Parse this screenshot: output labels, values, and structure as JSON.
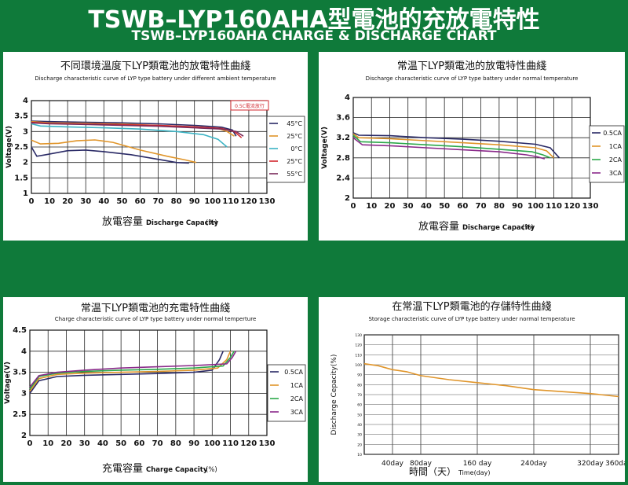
{
  "header": {
    "title_cn": "TSWB–LYP160AHA型電池的充放電特性",
    "title_en": "TSWB–LYP160AHA CHARGE & DISCHARGE CHART"
  },
  "colors": {
    "background": "#0f7a3a",
    "series": {
      "45C": "#2a2a66",
      "25C": "#e0952a",
      "0C": "#3bb3c4",
      "m25C": "#d2272e",
      "m55C": "#7a2a5a",
      "0.5CA": "#2a2a66",
      "1CA": "#e0952a",
      "2CA": "#2ca84a",
      "3CA": "#8a2a8a",
      "storage": "#e0952a"
    }
  },
  "chart_data": [
    {
      "type": "line",
      "title": "不同環境溫度下LYP類電池的放電特性曲綫",
      "subtitle": "Discharge characteristic curve of LYP type battery under different ambient temperature",
      "xlabel_cn": "放電容量",
      "xlabel_en": "Discharge Capacity",
      "xlabel_unit": "(%)",
      "ylabel": "Voltage(V)",
      "xlim": [
        0,
        130
      ],
      "ylim": [
        1,
        4
      ],
      "xticks": [
        "0",
        "10",
        "20",
        "30",
        "40",
        "50",
        "60",
        "70",
        "80",
        "90",
        "100",
        "110",
        "120",
        "130"
      ],
      "yticks": [
        "1",
        "1.5",
        "2",
        "2.5",
        "3",
        "3.5",
        "4"
      ],
      "annotation": "0.5C電流放行",
      "legend_position": "right",
      "series": [
        {
          "name": "45°C",
          "color": "#2a2a66",
          "points": [
            [
              0,
              3.34
            ],
            [
              10,
              3.32
            ],
            [
              30,
              3.3
            ],
            [
              50,
              3.28
            ],
            [
              70,
              3.25
            ],
            [
              90,
              3.2
            ],
            [
              105,
              3.14
            ],
            [
              111,
              3.05
            ],
            [
              113,
              2.85
            ]
          ]
        },
        {
          "name": "25°C",
          "color": "#e0952a",
          "points": [
            [
              0,
              3.32
            ],
            [
              10,
              3.28
            ],
            [
              30,
              3.26
            ],
            [
              50,
              3.24
            ],
            [
              70,
              3.2
            ],
            [
              90,
              3.15
            ],
            [
              103,
              3.1
            ],
            [
              108,
              3.0
            ],
            [
              112,
              2.85
            ]
          ]
        },
        {
          "name": "0°C",
          "color": "#3bb3c4",
          "points": [
            [
              0,
              3.25
            ],
            [
              5,
              3.18
            ],
            [
              20,
              3.15
            ],
            [
              40,
              3.12
            ],
            [
              60,
              3.08
            ],
            [
              80,
              3.0
            ],
            [
              95,
              2.9
            ],
            [
              103,
              2.75
            ],
            [
              108,
              2.5
            ]
          ]
        },
        {
          "name": "25°C",
          "color": "#d2272e",
          "points": [
            [
              0,
              3.3
            ],
            [
              10,
              3.26
            ],
            [
              30,
              3.24
            ],
            [
              50,
              3.22
            ],
            [
              70,
              3.2
            ],
            [
              90,
              3.15
            ],
            [
              105,
              3.1
            ],
            [
              112,
              3.0
            ],
            [
              116,
              2.8
            ]
          ]
        },
        {
          "name": "55°C",
          "color": "#7a2a5a",
          "points": [
            [
              0,
              3.28
            ],
            [
              10,
              3.25
            ],
            [
              30,
              3.23
            ],
            [
              50,
              3.2
            ],
            [
              70,
              3.17
            ],
            [
              90,
              3.12
            ],
            [
              105,
              3.08
            ],
            [
              113,
              3.0
            ],
            [
              117,
              2.85
            ]
          ]
        },
        {
          "name": "",
          "color": "#e0952a",
          "points": [
            [
              0,
              2.72
            ],
            [
              5,
              2.6
            ],
            [
              15,
              2.62
            ],
            [
              25,
              2.7
            ],
            [
              35,
              2.73
            ],
            [
              45,
              2.65
            ],
            [
              60,
              2.4
            ],
            [
              75,
              2.2
            ],
            [
              85,
              2.08
            ],
            [
              91,
              2.0
            ]
          ]
        },
        {
          "name": "",
          "color": "#2a2a66",
          "points": [
            [
              0,
              2.5
            ],
            [
              3,
              2.2
            ],
            [
              8,
              2.25
            ],
            [
              20,
              2.38
            ],
            [
              30,
              2.4
            ],
            [
              40,
              2.35
            ],
            [
              55,
              2.25
            ],
            [
              70,
              2.1
            ],
            [
              80,
              2.0
            ],
            [
              87,
              1.98
            ]
          ]
        }
      ],
      "legend": [
        "45°C",
        "25°C",
        "0°C",
        "25°C",
        "55°C"
      ]
    },
    {
      "type": "line",
      "title": "常温下LYP類電池的放電特性曲綫",
      "subtitle": "Discharge characteristic curve of LYP type battery under normal temperature",
      "xlabel_cn": "放電容量",
      "xlabel_en": "Discharge Capacity",
      "xlabel_unit": "(%)",
      "ylabel": "Voltage(V)",
      "xlim": [
        0,
        130
      ],
      "ylim": [
        2,
        4
      ],
      "xticks": [
        "0",
        "10",
        "20",
        "30",
        "40",
        "50",
        "60",
        "70",
        "80",
        "90",
        "100",
        "110",
        "120",
        "130"
      ],
      "yticks": [
        "2",
        "2.4",
        "2.8",
        "3.2",
        "3.6",
        "4"
      ],
      "legend_position": "right",
      "series": [
        {
          "name": "0.5CA",
          "color": "#2a2a66",
          "points": [
            [
              0,
              3.3
            ],
            [
              3,
              3.25
            ],
            [
              20,
              3.24
            ],
            [
              40,
              3.2
            ],
            [
              60,
              3.17
            ],
            [
              80,
              3.13
            ],
            [
              100,
              3.07
            ],
            [
              108,
              3.0
            ],
            [
              113,
              2.8
            ]
          ]
        },
        {
          "name": "1CA",
          "color": "#e0952a",
          "points": [
            [
              0,
              3.28
            ],
            [
              3,
              3.2
            ],
            [
              20,
              3.18
            ],
            [
              40,
              3.14
            ],
            [
              60,
              3.1
            ],
            [
              80,
              3.06
            ],
            [
              100,
              3.0
            ],
            [
              106,
              2.94
            ],
            [
              110,
              2.8
            ]
          ]
        },
        {
          "name": "2CA",
          "color": "#2ca84a",
          "points": [
            [
              0,
              3.25
            ],
            [
              4,
              3.12
            ],
            [
              20,
              3.1
            ],
            [
              40,
              3.06
            ],
            [
              60,
              3.02
            ],
            [
              80,
              2.97
            ],
            [
              98,
              2.92
            ],
            [
              104,
              2.86
            ],
            [
              108,
              2.8
            ]
          ]
        },
        {
          "name": "3CA",
          "color": "#8a2a8a",
          "points": [
            [
              0,
              3.2
            ],
            [
              5,
              3.06
            ],
            [
              20,
              3.04
            ],
            [
              40,
              3.0
            ],
            [
              60,
              2.96
            ],
            [
              80,
              2.92
            ],
            [
              95,
              2.86
            ],
            [
              101,
              2.82
            ],
            [
              105,
              2.78
            ]
          ]
        }
      ],
      "legend": [
        "0.5CA",
        "1CA",
        "2CA",
        "3CA"
      ]
    },
    {
      "type": "line",
      "title": "常温下LYP類電池的充電特性曲綫",
      "subtitle": "Charge characteristic curve of LYP type battery under normal temperture",
      "xlabel_cn": "充電容量",
      "xlabel_en": "Charge Capacity",
      "xlabel_unit": "(%)",
      "ylabel": "Voltage(V)",
      "xlim": [
        0,
        130
      ],
      "ylim": [
        2,
        4.5
      ],
      "xticks": [
        "0",
        "10",
        "20",
        "30",
        "40",
        "50",
        "60",
        "70",
        "80",
        "90",
        "100",
        "110",
        "120",
        "130"
      ],
      "yticks": [
        "2",
        "2.5",
        "3",
        "3.5",
        "4",
        "4.5"
      ],
      "legend_position": "right",
      "series": [
        {
          "name": "0.5CA",
          "color": "#2a2a66",
          "points": [
            [
              0,
              3.0
            ],
            [
              5,
              3.3
            ],
            [
              15,
              3.4
            ],
            [
              30,
              3.43
            ],
            [
              50,
              3.45
            ],
            [
              70,
              3.47
            ],
            [
              90,
              3.5
            ],
            [
              100,
              3.55
            ],
            [
              104,
              3.8
            ],
            [
              106,
              4.0
            ]
          ]
        },
        {
          "name": "1CA",
          "color": "#e0952a",
          "points": [
            [
              0,
              3.05
            ],
            [
              5,
              3.35
            ],
            [
              15,
              3.45
            ],
            [
              30,
              3.48
            ],
            [
              50,
              3.5
            ],
            [
              70,
              3.52
            ],
            [
              90,
              3.55
            ],
            [
              103,
              3.6
            ],
            [
              108,
              3.8
            ],
            [
              110,
              4.0
            ]
          ]
        },
        {
          "name": "2CA",
          "color": "#2ca84a",
          "points": [
            [
              0,
              3.1
            ],
            [
              5,
              3.4
            ],
            [
              15,
              3.48
            ],
            [
              30,
              3.52
            ],
            [
              50,
              3.55
            ],
            [
              70,
              3.57
            ],
            [
              90,
              3.6
            ],
            [
              106,
              3.65
            ],
            [
              110,
              3.85
            ],
            [
              112,
              4.0
            ]
          ]
        },
        {
          "name": "3CA",
          "color": "#8a2a8a",
          "points": [
            [
              0,
              3.15
            ],
            [
              5,
              3.42
            ],
            [
              15,
              3.5
            ],
            [
              30,
              3.55
            ],
            [
              50,
              3.6
            ],
            [
              70,
              3.63
            ],
            [
              90,
              3.66
            ],
            [
              108,
              3.7
            ],
            [
              111,
              3.85
            ],
            [
              113,
              4.0
            ]
          ]
        }
      ],
      "legend": [
        "0.5CA",
        "1CA",
        "2CA",
        "3CA"
      ]
    },
    {
      "type": "line",
      "title": "在常温下LYP類電池的存儲特性曲綫",
      "subtitle": "Storage characteristic curve of LYP type battery under normal temperature",
      "xlabel_cn": "時間（天）",
      "xlabel_en": "Time(day)",
      "ylabel": "Discharge Cepacity(%)",
      "xlim": [
        0,
        360
      ],
      "ylim": [
        10,
        130
      ],
      "xticks": [
        "40day",
        "80day",
        "160 day",
        "240day",
        "320day",
        "360day"
      ],
      "xtick_values": [
        40,
        80,
        160,
        240,
        320,
        360
      ],
      "yticks": [
        "10",
        "20",
        "30",
        "40",
        "50",
        "60",
        "70",
        "80",
        "90",
        "100",
        "110",
        "120",
        "130"
      ],
      "series": [
        {
          "name": "",
          "color": "#e0952a",
          "points": [
            [
              0,
              101
            ],
            [
              20,
              99
            ],
            [
              40,
              95
            ],
            [
              60,
              93
            ],
            [
              80,
              89
            ],
            [
              120,
              85
            ],
            [
              160,
              82
            ],
            [
              200,
              79
            ],
            [
              240,
              75
            ],
            [
              280,
              73
            ],
            [
              320,
              71
            ],
            [
              360,
              68
            ]
          ]
        }
      ]
    }
  ]
}
